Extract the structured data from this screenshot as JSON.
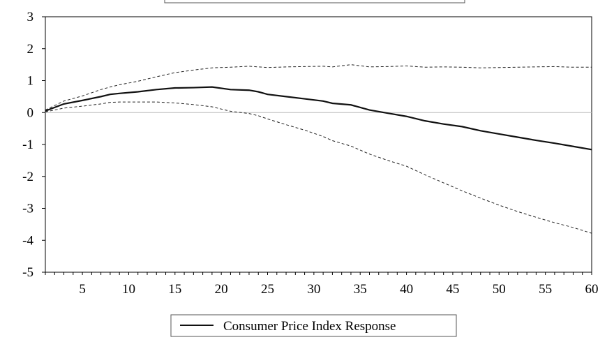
{
  "chart_data": {
    "type": "line",
    "title": "",
    "xlabel": "",
    "ylabel": "",
    "xlim": [
      1,
      60
    ],
    "ylim": [
      -5,
      3
    ],
    "y_ticks": [
      3,
      2,
      1,
      0,
      -1,
      -2,
      -3,
      -4,
      -5
    ],
    "x_ticks": [
      5,
      10,
      15,
      20,
      25,
      30,
      35,
      40,
      45,
      50,
      55,
      60
    ],
    "zero_line": true,
    "grid": false,
    "legend": {
      "position": "bottom-center",
      "entries": [
        "Consumer Price Index Response"
      ]
    },
    "x": [
      1,
      3,
      5,
      7,
      8,
      9,
      11,
      13,
      15,
      17,
      19,
      21,
      23,
      24,
      25,
      27,
      29,
      31,
      32,
      34,
      36,
      38,
      40,
      42,
      44,
      46,
      48,
      50,
      52,
      54,
      56,
      58,
      60
    ],
    "series": [
      {
        "name": "Consumer Price Index Response",
        "style": "solid",
        "values": [
          0.05,
          0.27,
          0.38,
          0.5,
          0.57,
          0.6,
          0.65,
          0.72,
          0.77,
          0.78,
          0.8,
          0.72,
          0.7,
          0.65,
          0.57,
          0.5,
          0.43,
          0.36,
          0.29,
          0.24,
          0.08,
          -0.02,
          -0.12,
          -0.26,
          -0.36,
          -0.44,
          -0.57,
          -0.67,
          -0.77,
          -0.87,
          -0.96,
          -1.06,
          -1.16
        ]
      },
      {
        "style": "dashed",
        "values": [
          0.08,
          0.36,
          0.52,
          0.72,
          0.8,
          0.87,
          0.98,
          1.12,
          1.25,
          1.33,
          1.4,
          1.42,
          1.45,
          1.43,
          1.41,
          1.43,
          1.44,
          1.45,
          1.43,
          1.5,
          1.43,
          1.44,
          1.46,
          1.42,
          1.43,
          1.42,
          1.4,
          1.41,
          1.42,
          1.43,
          1.44,
          1.42,
          1.42
        ]
      },
      {
        "style": "dashed",
        "values": [
          0.02,
          0.14,
          0.2,
          0.27,
          0.32,
          0.33,
          0.33,
          0.33,
          0.3,
          0.25,
          0.18,
          0.04,
          -0.03,
          -0.1,
          -0.2,
          -0.38,
          -0.55,
          -0.75,
          -0.88,
          -1.05,
          -1.3,
          -1.5,
          -1.68,
          -1.95,
          -2.2,
          -2.45,
          -2.68,
          -2.9,
          -3.1,
          -3.28,
          -3.45,
          -3.6,
          -3.78
        ]
      }
    ]
  }
}
